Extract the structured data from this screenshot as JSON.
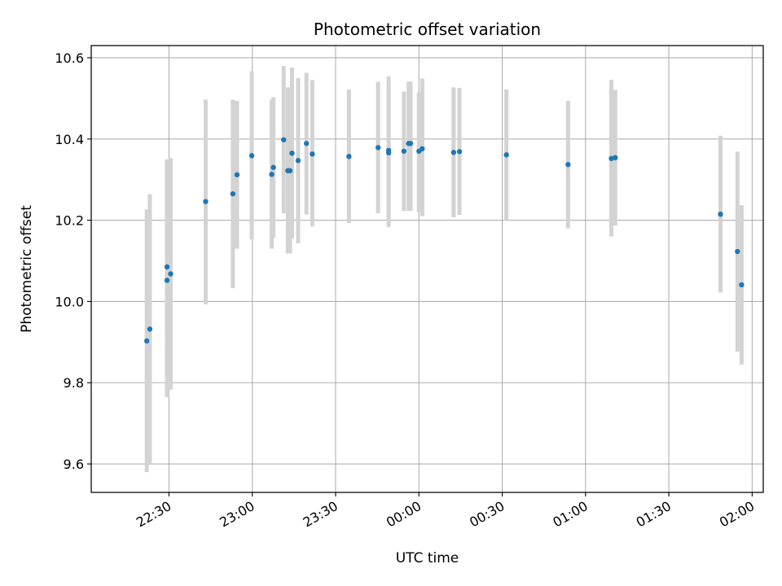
{
  "chart_data": {
    "type": "scatter",
    "title": "Photometric offset variation",
    "xlabel": "UTC time",
    "ylabel": "Photometric offset",
    "x_unit": "UTC time (minutes after 22:00 on the first night)",
    "xlim": [
      2,
      244
    ],
    "ylim": [
      9.53,
      10.63
    ],
    "x_ticks": [
      {
        "value": 30,
        "label": "22:30"
      },
      {
        "value": 60,
        "label": "23:00"
      },
      {
        "value": 90,
        "label": "23:30"
      },
      {
        "value": 120,
        "label": "00:00"
      },
      {
        "value": 150,
        "label": "00:30"
      },
      {
        "value": 180,
        "label": "01:00"
      },
      {
        "value": 210,
        "label": "01:30"
      },
      {
        "value": 240,
        "label": "02:00"
      }
    ],
    "y_ticks": [
      {
        "value": 9.6,
        "label": "9.6"
      },
      {
        "value": 9.8,
        "label": "9.8"
      },
      {
        "value": 10.0,
        "label": "10.0"
      },
      {
        "value": 10.2,
        "label": "10.2"
      },
      {
        "value": 10.4,
        "label": "10.4"
      },
      {
        "value": 10.6,
        "label": "10.6"
      }
    ],
    "grid": true,
    "point_color": "#1f77b4",
    "errorbar_color": "#d3d3d3",
    "points": [
      {
        "x": 22.0,
        "y": 9.903,
        "lo": 9.58,
        "hi": 10.227
      },
      {
        "x": 23.1,
        "y": 9.932,
        "lo": 9.6,
        "hi": 10.264
      },
      {
        "x": 29.3,
        "y": 10.085,
        "lo": 9.765,
        "hi": 10.35
      },
      {
        "x": 29.3,
        "y": 10.052,
        "lo": 9.765,
        "hi": 10.35
      },
      {
        "x": 30.6,
        "y": 10.068,
        "lo": 9.783,
        "hi": 10.353
      },
      {
        "x": 43.2,
        "y": 10.246,
        "lo": 9.993,
        "hi": 10.497
      },
      {
        "x": 53.0,
        "y": 10.265,
        "lo": 10.033,
        "hi": 10.497
      },
      {
        "x": 54.5,
        "y": 10.312,
        "lo": 10.13,
        "hi": 10.494
      },
      {
        "x": 59.8,
        "y": 10.359,
        "lo": 10.153,
        "hi": 10.567
      },
      {
        "x": 67.0,
        "y": 10.313,
        "lo": 10.13,
        "hi": 10.497
      },
      {
        "x": 67.6,
        "y": 10.33,
        "lo": 10.157,
        "hi": 10.503
      },
      {
        "x": 71.3,
        "y": 10.398,
        "lo": 10.217,
        "hi": 10.58
      },
      {
        "x": 72.8,
        "y": 10.322,
        "lo": 10.118,
        "hi": 10.527
      },
      {
        "x": 73.6,
        "y": 10.322,
        "lo": 10.118,
        "hi": 10.527
      },
      {
        "x": 74.3,
        "y": 10.365,
        "lo": 10.155,
        "hi": 10.576
      },
      {
        "x": 76.5,
        "y": 10.347,
        "lo": 10.143,
        "hi": 10.55
      },
      {
        "x": 79.5,
        "y": 10.389,
        "lo": 10.214,
        "hi": 10.563
      },
      {
        "x": 81.6,
        "y": 10.363,
        "lo": 10.185,
        "hi": 10.545
      },
      {
        "x": 94.8,
        "y": 10.357,
        "lo": 10.193,
        "hi": 10.522
      },
      {
        "x": 105.3,
        "y": 10.379,
        "lo": 10.217,
        "hi": 10.541
      },
      {
        "x": 109.1,
        "y": 10.366,
        "lo": 10.183,
        "hi": 10.554
      },
      {
        "x": 109.1,
        "y": 10.372,
        "lo": 10.21,
        "hi": 10.524
      },
      {
        "x": 114.6,
        "y": 10.37,
        "lo": 10.223,
        "hi": 10.517
      },
      {
        "x": 116.3,
        "y": 10.389,
        "lo": 10.223,
        "hi": 10.541
      },
      {
        "x": 117.0,
        "y": 10.389,
        "lo": 10.223,
        "hi": 10.541
      },
      {
        "x": 120.0,
        "y": 10.37,
        "lo": 10.22,
        "hi": 10.514
      },
      {
        "x": 121.2,
        "y": 10.376,
        "lo": 10.21,
        "hi": 10.549
      },
      {
        "x": 132.5,
        "y": 10.367,
        "lo": 10.207,
        "hi": 10.527
      },
      {
        "x": 134.6,
        "y": 10.369,
        "lo": 10.213,
        "hi": 10.526
      },
      {
        "x": 151.5,
        "y": 10.361,
        "lo": 10.2,
        "hi": 10.522
      },
      {
        "x": 173.7,
        "y": 10.337,
        "lo": 10.18,
        "hi": 10.494
      },
      {
        "x": 189.3,
        "y": 10.352,
        "lo": 10.16,
        "hi": 10.546
      },
      {
        "x": 190.7,
        "y": 10.354,
        "lo": 10.187,
        "hi": 10.521
      },
      {
        "x": 228.6,
        "y": 10.215,
        "lo": 10.022,
        "hi": 10.408
      },
      {
        "x": 234.7,
        "y": 10.123,
        "lo": 9.877,
        "hi": 10.369
      },
      {
        "x": 236.2,
        "y": 10.041,
        "lo": 9.845,
        "hi": 10.237
      }
    ]
  }
}
